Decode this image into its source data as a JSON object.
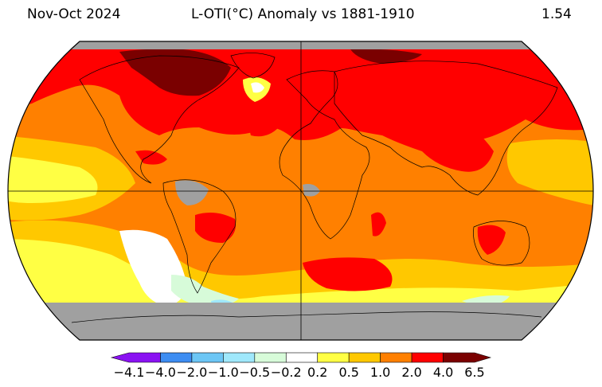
{
  "header": {
    "period": "Nov-Oct 2024",
    "title": "L-OTI(°C) Anomaly vs 1881-1910",
    "global_mean": "1.54"
  },
  "colorbar": {
    "labels": [
      "−4.1",
      "−4.0",
      "−2.0",
      "−1.0",
      "−0.5",
      "−0.2",
      "0.2",
      "0.5",
      "1.0",
      "2.0",
      "4.0",
      "6.5"
    ],
    "colors": [
      "#8a12f2",
      "#3d8df2",
      "#6cc6f5",
      "#9fe8fb",
      "#d7fbd9",
      "#ffffff",
      "#ffff44",
      "#ffc800",
      "#ff8000",
      "#ff0000",
      "#7a0000"
    ],
    "missing_color": "#a0a0a0"
  },
  "map": {
    "projection": "robinson",
    "ocean_base_color": "#ff8000"
  }
}
